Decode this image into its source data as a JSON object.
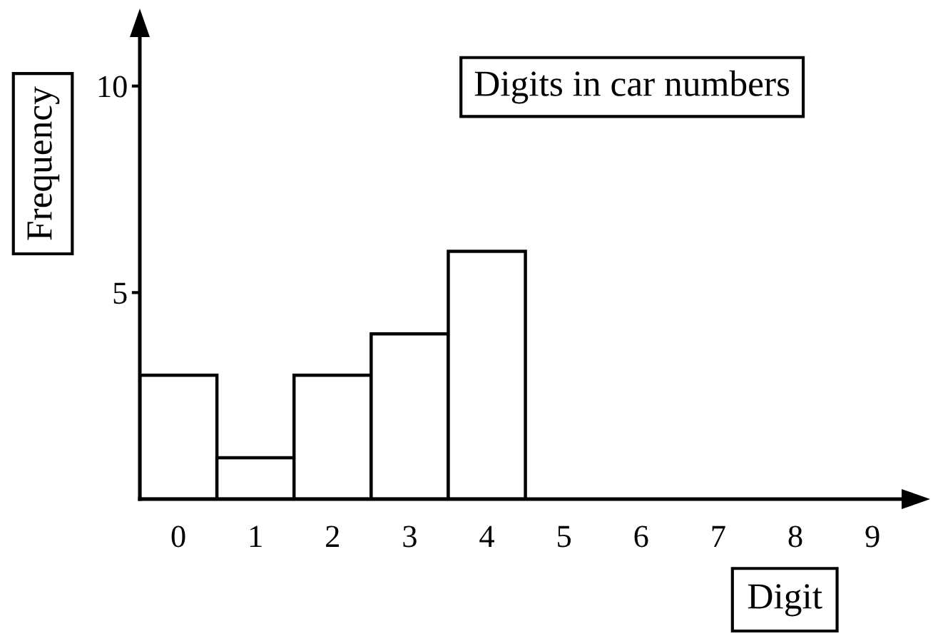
{
  "chart_data": {
    "type": "bar",
    "title": "Digits in car numbers",
    "xlabel": "Digit",
    "ylabel": "Frequency",
    "categories": [
      "0",
      "1",
      "2",
      "3",
      "4",
      "5",
      "6",
      "7",
      "8",
      "9"
    ],
    "values": [
      3,
      1,
      3,
      4,
      6,
      0,
      0,
      0,
      0,
      0
    ],
    "color": "#ffffff",
    "ylim": [
      0,
      11.6
    ],
    "yticks": [
      5,
      10
    ]
  }
}
